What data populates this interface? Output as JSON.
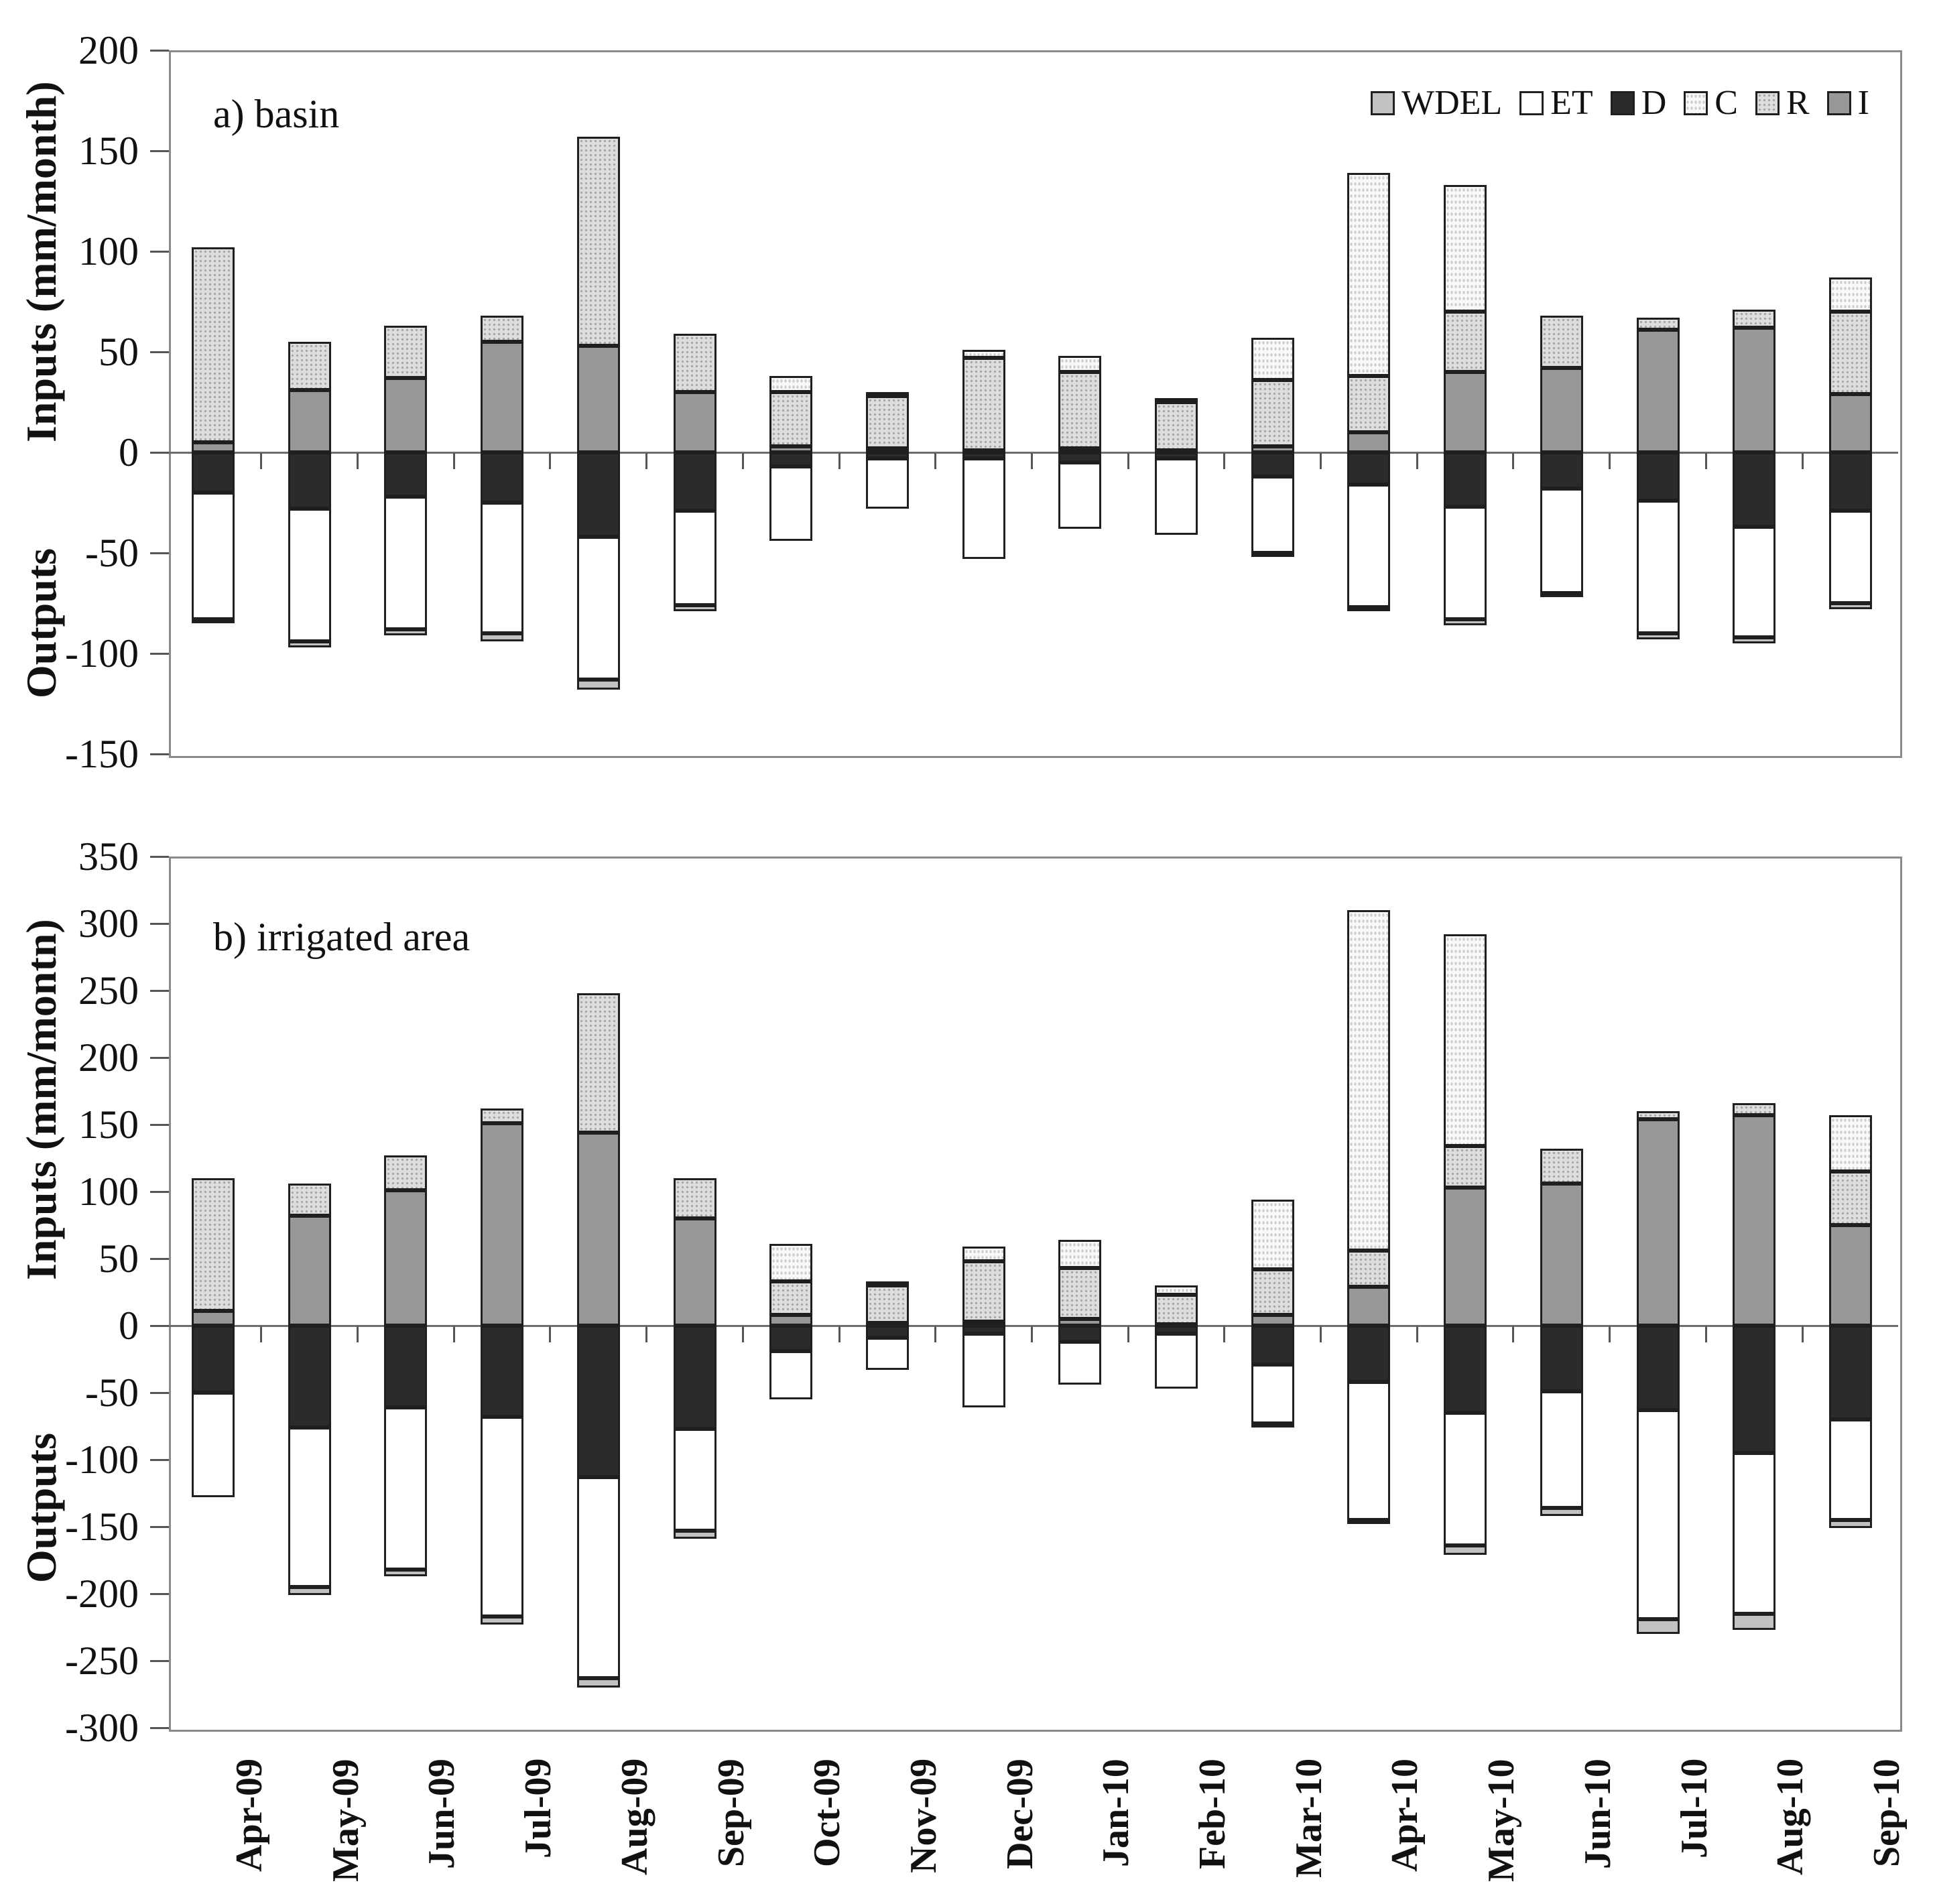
{
  "legend": {
    "items": [
      {
        "key": "WDEL",
        "label": "WDEL"
      },
      {
        "key": "ET",
        "label": "ET"
      },
      {
        "key": "D",
        "label": "D"
      },
      {
        "key": "C",
        "label": "C"
      },
      {
        "key": "R",
        "label": "R"
      },
      {
        "key": "I",
        "label": "I"
      }
    ]
  },
  "chart_data": [
    {
      "type": "bar",
      "stacked": true,
      "title": "a) basin",
      "ylabel_inputs": "Inputs (mm/month)",
      "ylabel_outputs": "Outputs",
      "ylim": [
        -150,
        200
      ],
      "ytick_step": 50,
      "yticks": [
        200,
        150,
        100,
        50,
        0,
        -50,
        -100,
        -150
      ],
      "grid": false,
      "legend_position": "top-right",
      "categories": [
        "Apr-09",
        "May-09",
        "Jun-09",
        "Jul-09",
        "Aug-09",
        "Sep-09",
        "Oct-09",
        "Nov-09",
        "Dec-09",
        "Jan-10",
        "Feb-10",
        "Mar-10",
        "Apr-10",
        "May-10",
        "Jun-10",
        "Jul-10",
        "Aug-10",
        "Sep-10"
      ],
      "series": [
        {
          "name": "I",
          "values": [
            5,
            31,
            37,
            55,
            53,
            30,
            3,
            2,
            1,
            2,
            1,
            3,
            10,
            40,
            42,
            61,
            62,
            29
          ]
        },
        {
          "name": "R",
          "values": [
            97,
            24,
            26,
            13,
            104,
            29,
            27,
            26,
            46,
            38,
            24,
            33,
            28,
            30,
            26,
            6,
            9,
            41
          ]
        },
        {
          "name": "C",
          "values": [
            0,
            0,
            0,
            0,
            0,
            0,
            8,
            2,
            4,
            8,
            2,
            21,
            101,
            63,
            0,
            0,
            0,
            17
          ]
        },
        {
          "name": "D",
          "values": [
            -20,
            -28,
            -22,
            -25,
            -42,
            -29,
            -7,
            -3,
            -3,
            -5,
            -3,
            -12,
            -16,
            -27,
            -18,
            -24,
            -37,
            -29
          ]
        },
        {
          "name": "ET",
          "values": [
            -63,
            -66,
            -66,
            -65,
            -71,
            -47,
            -37,
            -25,
            -50,
            -33,
            -38,
            -38,
            -61,
            -56,
            -52,
            -66,
            -55,
            -46
          ]
        },
        {
          "name": "WDEL",
          "values": [
            -2,
            -3,
            -3,
            -4,
            -5,
            -3,
            0,
            0,
            0,
            0,
            0,
            -1,
            -2,
            -3,
            -2,
            -3,
            -3,
            -3
          ]
        }
      ]
    },
    {
      "type": "bar",
      "stacked": true,
      "title": "b) irrigated area",
      "ylabel_inputs": "Inputs (mm/montn)",
      "ylabel_outputs": "Outputs",
      "ylim": [
        -300,
        350
      ],
      "ytick_step": 50,
      "yticks": [
        350,
        300,
        250,
        200,
        150,
        100,
        50,
        0,
        -50,
        -100,
        -150,
        -200,
        -250,
        -300
      ],
      "grid": false,
      "legend_position": "none",
      "categories": [
        "Apr-09",
        "May-09",
        "Jun-09",
        "Jul-09",
        "Aug-09",
        "Sep-09",
        "Oct-09",
        "Nov-09",
        "Dec-09",
        "Jan-10",
        "Feb-10",
        "Mar-10",
        "Apr-10",
        "May-10",
        "Jun-10",
        "Jul-10",
        "Aug-10",
        "Sep-10"
      ],
      "series": [
        {
          "name": "I",
          "values": [
            11,
            82,
            101,
            151,
            144,
            80,
            8,
            2,
            3,
            5,
            1,
            8,
            29,
            103,
            106,
            154,
            157,
            75
          ]
        },
        {
          "name": "R",
          "values": [
            99,
            24,
            26,
            11,
            104,
            30,
            25,
            28,
            45,
            38,
            22,
            34,
            27,
            31,
            26,
            6,
            9,
            40
          ]
        },
        {
          "name": "C",
          "values": [
            0,
            0,
            0,
            0,
            0,
            0,
            28,
            3,
            11,
            21,
            7,
            52,
            254,
            158,
            0,
            0,
            0,
            42
          ]
        },
        {
          "name": "D",
          "values": [
            -50,
            -76,
            -61,
            -68,
            -113,
            -77,
            -19,
            -9,
            -6,
            -12,
            -6,
            -29,
            -42,
            -65,
            -49,
            -63,
            -95,
            -70
          ]
        },
        {
          "name": "ET",
          "values": [
            -78,
            -119,
            -121,
            -149,
            -150,
            -76,
            -36,
            -24,
            -55,
            -32,
            -41,
            -44,
            -103,
            -99,
            -87,
            -156,
            -120,
            -75
          ]
        },
        {
          "name": "WDEL",
          "values": [
            0,
            -6,
            -5,
            -6,
            -7,
            -6,
            0,
            0,
            0,
            0,
            0,
            -1,
            -3,
            -7,
            -6,
            -11,
            -12,
            -6
          ]
        }
      ]
    }
  ],
  "colors": {
    "WDEL": "#c2c2c2",
    "ET": "#ffffff",
    "D": "#2b2b2b",
    "C": "#f8f8f8",
    "R": "#dddddd",
    "I": "#989898",
    "frame": "#8a8a8a",
    "axis": "#6e6e6e",
    "text": "#111111"
  }
}
